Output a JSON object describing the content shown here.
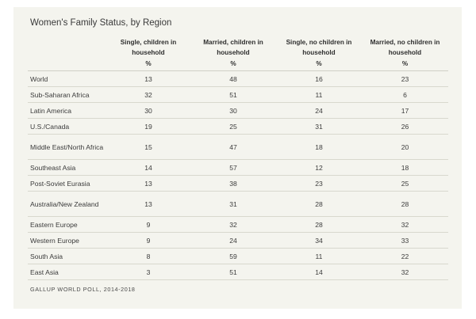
{
  "chart_data": {
    "type": "table",
    "title": "Women's Family Status, by Region",
    "columns": [
      "Single, children in household",
      "Married, children in household",
      "Single, no children in household",
      "Married, no children in household"
    ],
    "unit_label": "%",
    "rows": [
      {
        "region": "World",
        "values": [
          "13",
          "48",
          "16",
          "23"
        ]
      },
      {
        "region": "Sub-Saharan Africa",
        "values": [
          "32",
          "51",
          "11",
          "6"
        ]
      },
      {
        "region": "Latin America",
        "values": [
          "30",
          "30",
          "24",
          "17"
        ]
      },
      {
        "region": "U.S./Canada",
        "values": [
          "19",
          "25",
          "31",
          "26"
        ]
      },
      {
        "region": "Middle East/North Africa",
        "values": [
          "15",
          "47",
          "18",
          "20"
        ]
      },
      {
        "region": "Southeast Asia",
        "values": [
          "14",
          "57",
          "12",
          "18"
        ]
      },
      {
        "region": "Post-Soviet Eurasia",
        "values": [
          "13",
          "38",
          "23",
          "25"
        ]
      },
      {
        "region": "Australia/New Zealand",
        "values": [
          "13",
          "31",
          "28",
          "28"
        ]
      },
      {
        "region": "Eastern Europe",
        "values": [
          "9",
          "32",
          "28",
          "32"
        ]
      },
      {
        "region": "Western Europe",
        "values": [
          "9",
          "24",
          "34",
          "33"
        ]
      },
      {
        "region": "South Asia",
        "values": [
          "8",
          "59",
          "11",
          "22"
        ]
      },
      {
        "region": "East Asia",
        "values": [
          "3",
          "51",
          "14",
          "32"
        ]
      }
    ],
    "source": "GALLUP WORLD POLL, 2014-2018"
  }
}
